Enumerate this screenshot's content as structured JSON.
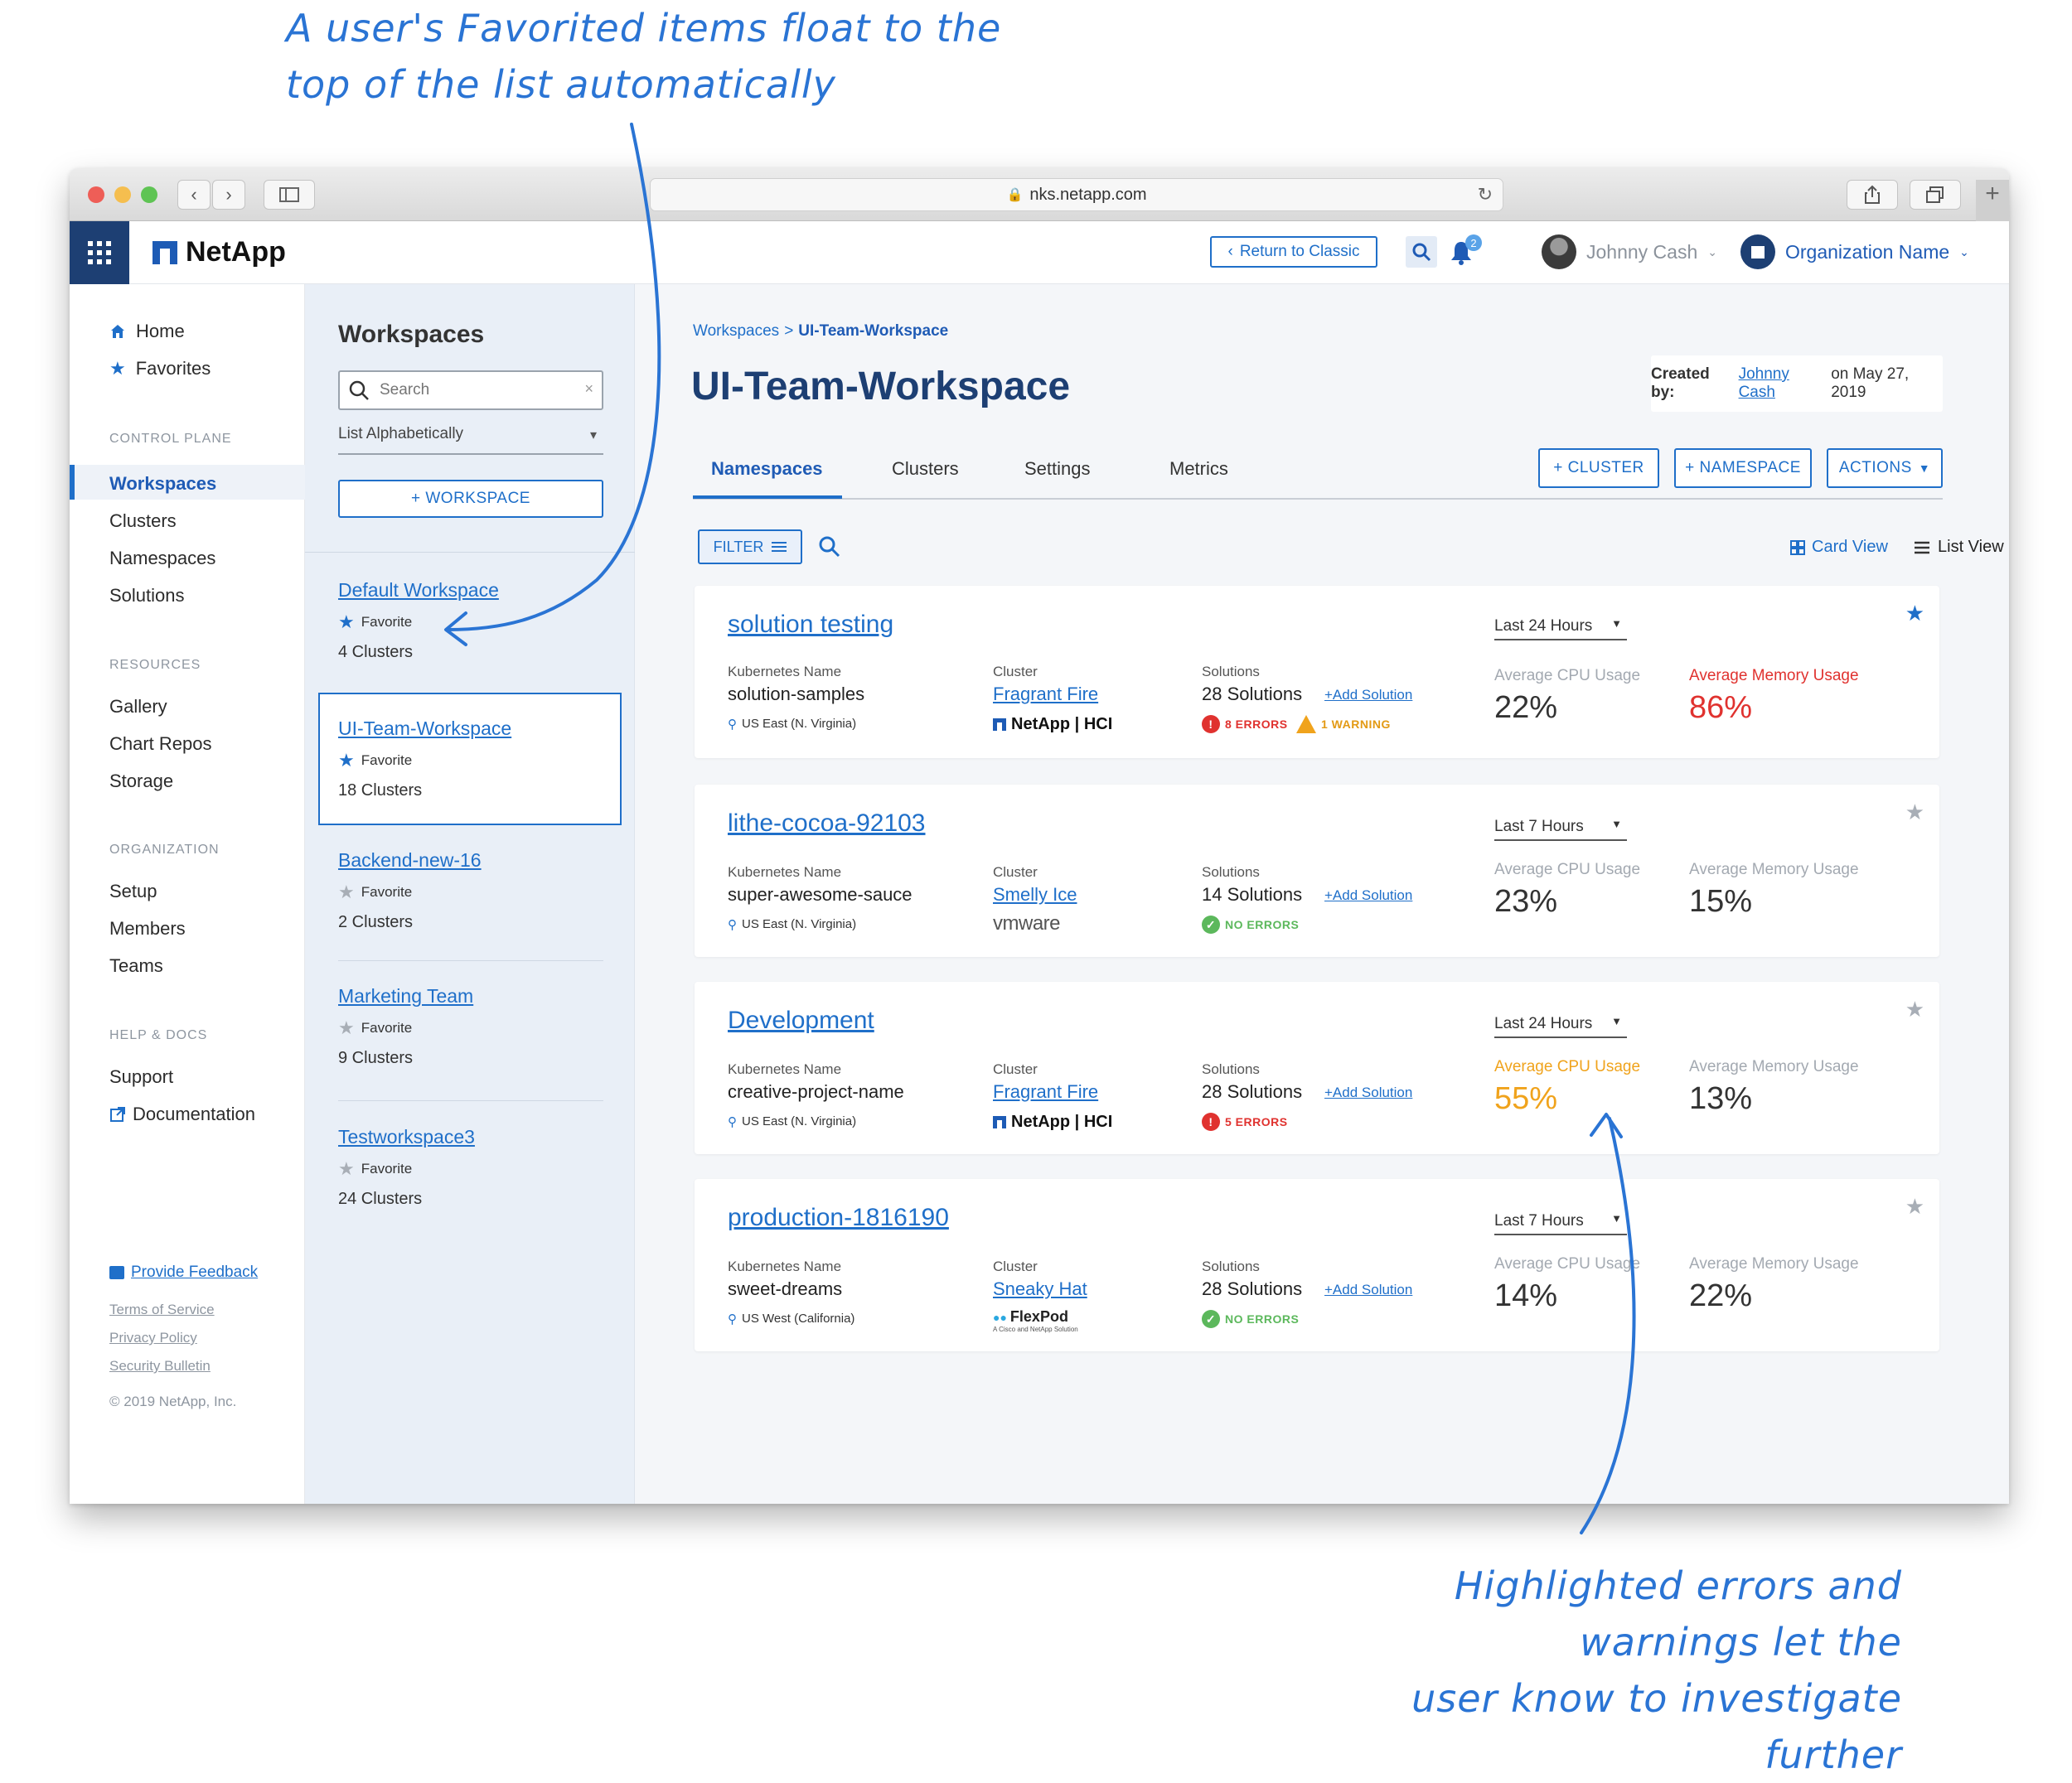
{
  "annotations": {
    "top_line1": "A user's Favorited items float to the",
    "top_line2": "top of the list automatically",
    "bottom_line1": "Highlighted errors and warnings let the",
    "bottom_line2": "user know to investigate further"
  },
  "browser": {
    "url": "nks.netapp.com"
  },
  "header": {
    "brand": "NetApp",
    "return_label": "Return to Classic",
    "notification_count": "2",
    "user_name": "Johnny Cash",
    "org_name": "Organization Name"
  },
  "sidebar": {
    "home": "Home",
    "favorites": "Favorites",
    "control_plane": "CONTROL PLANE",
    "workspaces": "Workspaces",
    "clusters": "Clusters",
    "namespaces": "Namespaces",
    "solutions": "Solutions",
    "resources": "RESOURCES",
    "gallery": "Gallery",
    "chart_repos": "Chart Repos",
    "storage": "Storage",
    "organization": "ORGANIZATION",
    "setup": "Setup",
    "members": "Members",
    "teams": "Teams",
    "help_docs": "HELP & DOCS",
    "support": "Support",
    "documentation": "Documentation",
    "feedback": "Provide Feedback",
    "terms": "Terms of Service",
    "privacy": "Privacy Policy",
    "security": "Security Bulletin",
    "copyright": "© 2019 NetApp, Inc."
  },
  "workspaces_panel": {
    "title": "Workspaces",
    "search_placeholder": "Search",
    "sort": "List Alphabetically",
    "add_label": "+ WORKSPACE",
    "favorite_label": "Favorite",
    "items": [
      {
        "name": "Default Workspace",
        "favorite": true,
        "clusters": "4 Clusters"
      },
      {
        "name": "UI-Team-Workspace",
        "favorite": true,
        "clusters": "18 Clusters"
      },
      {
        "name": "Backend-new-16",
        "favorite": false,
        "clusters": "2 Clusters"
      },
      {
        "name": "Marketing Team",
        "favorite": false,
        "clusters": "9 Clusters"
      },
      {
        "name": "Testworkspace3",
        "favorite": false,
        "clusters": "24 Clusters"
      }
    ]
  },
  "main": {
    "breadcrumb_root": "Workspaces",
    "breadcrumb_sep": ">",
    "breadcrumb_current": "UI-Team-Workspace",
    "title": "UI-Team-Workspace",
    "created_by_label": "Created by:",
    "created_by_user": "Johnny Cash",
    "created_on": "on May 27, 2019",
    "tabs": [
      "Namespaces",
      "Clusters",
      "Settings",
      "Metrics"
    ],
    "btn_cluster": "+ CLUSTER",
    "btn_namespace": "+ NAMESPACE",
    "btn_actions": "ACTIONS",
    "filter": "FILTER",
    "card_view": "Card View",
    "list_view": "List View",
    "kube_label": "Kubernetes Name",
    "cluster_label": "Cluster",
    "solutions_label": "Solutions",
    "add_solution": "+Add Solution",
    "cpu_label": "Average CPU Usage",
    "mem_label": "Average Memory Usage"
  },
  "cards": [
    {
      "title": "solution testing",
      "kube": "solution-samples",
      "region": "US East (N. Virginia)",
      "cluster": "Fragrant Fire",
      "platform": "NetApp | HCI",
      "solutions": "28 Solutions",
      "errors": "8 ERRORS",
      "warnings": "1 WARNING",
      "period": "Last 24 Hours",
      "cpu": "22%",
      "mem": "86%",
      "starred": true
    },
    {
      "title": "lithe-cocoa-92103",
      "kube": "super-awesome-sauce",
      "region": "US East (N. Virginia)",
      "cluster": "Smelly Ice",
      "platform": "vmware",
      "solutions": "14 Solutions",
      "status": "NO ERRORS",
      "period": "Last 7 Hours",
      "cpu": "23%",
      "mem": "15%",
      "starred": false
    },
    {
      "title": "Development",
      "kube": "creative-project-name",
      "region": "US East (N. Virginia)",
      "cluster": "Fragrant Fire",
      "platform": "NetApp | HCI",
      "solutions": "28 Solutions",
      "errors": "5 ERRORS",
      "period": "Last 24 Hours",
      "cpu": "55%",
      "mem": "13%",
      "starred": false
    },
    {
      "title": "production-1816190",
      "kube": "sweet-dreams",
      "region": "US West (California)",
      "cluster": "Sneaky Hat",
      "platform": "FlexPod",
      "platform_sub": "A Cisco and NetApp Solution",
      "solutions": "28 Solutions",
      "status": "NO ERRORS",
      "period": "Last 7 Hours",
      "cpu": "14%",
      "mem": "22%",
      "starred": false
    }
  ],
  "colors": {
    "accent": "#1f6fc9",
    "error": "#e0322f",
    "warning": "#f0a31c",
    "success": "#5cb85c",
    "nav_dark": "#1d3f73"
  }
}
